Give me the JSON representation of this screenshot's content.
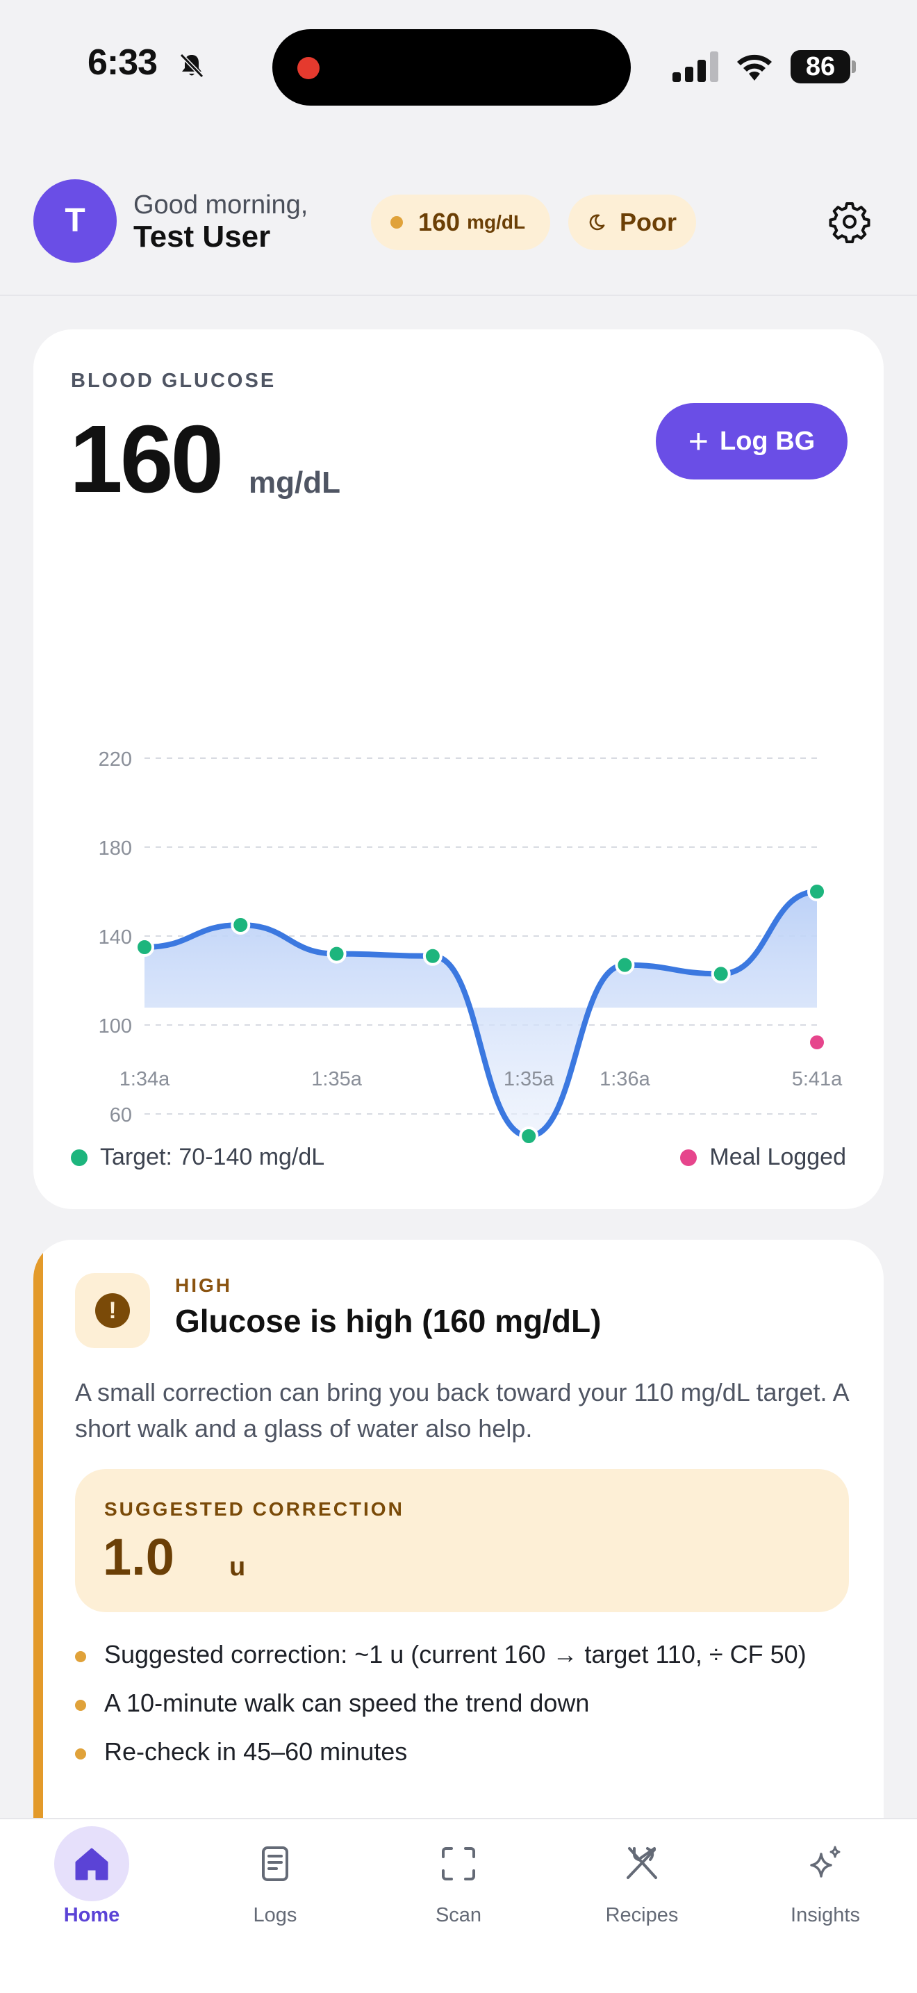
{
  "status_bar": {
    "time": "6:33",
    "battery": "86"
  },
  "header": {
    "avatar_initial": "T",
    "greeting": "Good morning,",
    "user_name": "Test User",
    "glucose_pill": {
      "value": "160",
      "unit": "mg/dL"
    },
    "sleep_pill": {
      "label": "Poor"
    }
  },
  "bg_card": {
    "title": "BLOOD GLUCOSE",
    "value": "160",
    "unit": "mg/dL",
    "log_button": "Log BG",
    "legend": {
      "target": "Target: 70-140 mg/dL",
      "meal": "Meal Logged"
    }
  },
  "chart_data": {
    "type": "line",
    "y_ticks": [
      220,
      180,
      140,
      100,
      60
    ],
    "ylim": [
      40,
      240
    ],
    "x_tick_labels": [
      "1:34a",
      "1:35a",
      "1:35a",
      "1:36a",
      "5:41a"
    ],
    "series": [
      {
        "values": [
          135,
          145,
          132,
          131,
          50,
          127,
          123,
          160
        ]
      }
    ],
    "meal_markers": [
      {
        "point_index": 7
      }
    ],
    "colors": {
      "line": "#3b78e0",
      "point": "#1db57d",
      "meal": "#e6458c"
    },
    "grid": true
  },
  "alert_card": {
    "tag": "HIGH",
    "title": "Glucose is high (160 mg/dL)",
    "body": "A small correction can bring you back toward your 110 mg/dL target. A short walk and a glass of water also help.",
    "correction": {
      "label": "SUGGESTED CORRECTION",
      "value": "1.0",
      "unit": "u"
    },
    "bullets": [
      "Suggested correction: ~1 u (current 160 → target 110, ÷ CF 50)",
      "A 10-minute walk can speed the trend down",
      "Re-check in 45–60 minutes"
    ]
  },
  "tabbar": {
    "tabs": [
      {
        "label": "Home",
        "icon": "home-icon",
        "active": true
      },
      {
        "label": "Logs",
        "icon": "logs-icon",
        "active": false
      },
      {
        "label": "Scan",
        "icon": "scan-icon",
        "active": false
      },
      {
        "label": "Recipes",
        "icon": "recipes-icon",
        "active": false
      },
      {
        "label": "Insights",
        "icon": "sparkle-icon",
        "active": false
      }
    ]
  }
}
